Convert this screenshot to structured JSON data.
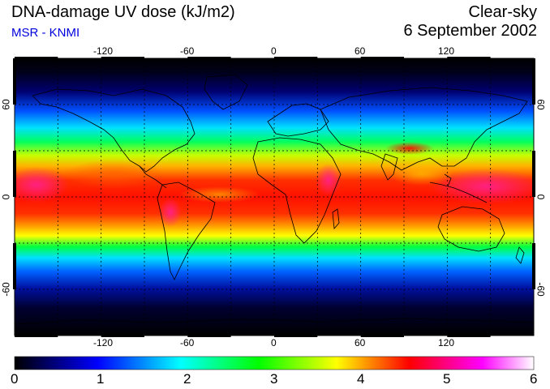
{
  "header": {
    "title": "DNA-damage UV dose (kJ/m2)",
    "source": "MSR - KNMI",
    "condition": "Clear-sky",
    "date": "6 September 2002"
  },
  "map": {
    "lon_ticks": [
      "-120",
      "-60",
      "0",
      "60",
      "120"
    ],
    "lat_ticks_left": [
      "60",
      "0",
      "-60"
    ],
    "lat_ticks_right": [
      "60",
      "0",
      "-60"
    ],
    "lon_range": [
      -180,
      180
    ],
    "lat_range": [
      -90,
      90
    ],
    "grid": "dashed, every 30 degrees"
  },
  "colorbar": {
    "min": 0,
    "max": 6,
    "labels": [
      "0",
      "1",
      "2",
      "3",
      "4",
      "5",
      "6"
    ],
    "colors": [
      "#000000",
      "#0000ff",
      "#00ffff",
      "#00ff00",
      "#ffff00",
      "#ff0000",
      "#ff00ff",
      "#ffffff"
    ]
  }
}
